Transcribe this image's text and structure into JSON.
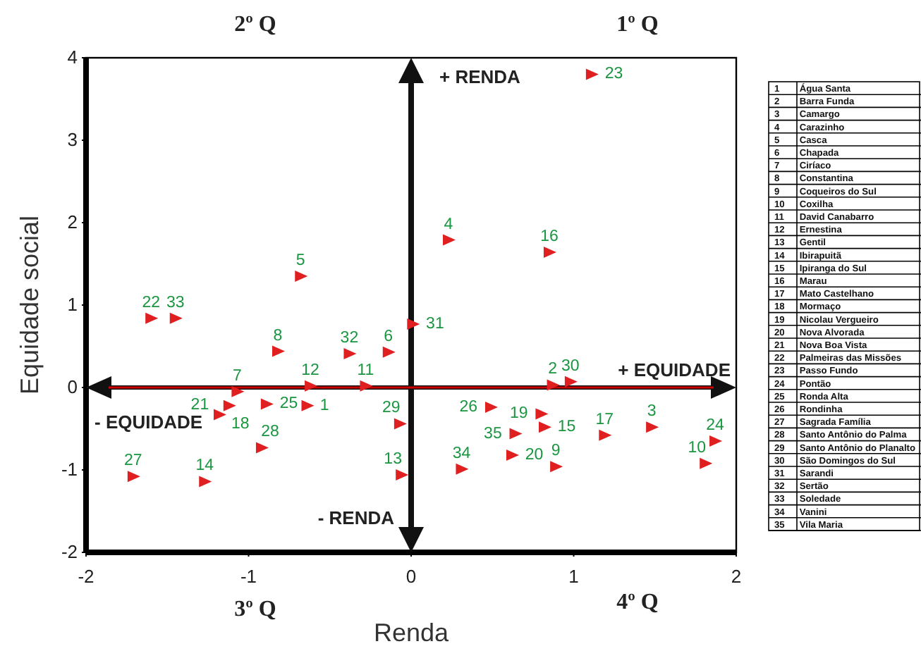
{
  "chart_data": {
    "type": "scatter",
    "xlabel": "Renda",
    "ylabel": "Equidade social",
    "xlim": [
      -2,
      2
    ],
    "ylim": [
      -2,
      4
    ],
    "xticks": [
      -2,
      -1,
      0,
      1,
      2
    ],
    "yticks": [
      -2,
      -1,
      0,
      1,
      2,
      3,
      4
    ],
    "grid": false,
    "marker": "triangle",
    "ref_lines": [
      {
        "axis": "y",
        "value": 0,
        "color": "#cc0000"
      }
    ],
    "annotations": [
      "2º Q",
      "1º Q",
      "3º Q",
      "4º Q",
      "+ RENDA",
      "- RENDA",
      "+ EQUIDADE",
      "- EQUIDADE",
      "1 Água Santa",
      "2 Barra Funda",
      "3 Camargo",
      "4 Carazinho",
      "5 Casca",
      "6 Chapada",
      "7 Ciríaco",
      "8 Constantina",
      "9 Coqueiros do Sul",
      "10 Coxilha",
      "11 David Canabarro",
      "12 Ernestina",
      "13 Gentil",
      "14 Ibirapuitã",
      "15 Ipiranga do Sul",
      "16 Marau",
      "17 Mato Castelhano",
      "18 Mormaço",
      "19 Nicolau Vergueiro",
      "20 Nova Alvorada",
      "21 Nova Boa Vista",
      "22 Palmeiras das Missões",
      "23 Passo Fundo",
      "24 Pontão",
      "25 Ronda Alta",
      "26 Rondinha",
      "27 Sagrada Família",
      "28 Santo Antônio do Palma",
      "29 Santo Antônio do Planalto",
      "30 São Domingos do Sul",
      "31 Sarandi",
      "32 Sertão",
      "33 Soledade",
      "34 Vanini",
      "35 Vila Maria"
    ],
    "series": [
      {
        "name": "1",
        "color": "#e02020",
        "x": [
          -0.64
        ],
        "values": [
          -0.22
        ]
      },
      {
        "name": "2",
        "color": "#e02020",
        "x": [
          0.87
        ],
        "values": [
          0.03
        ]
      },
      {
        "name": "3",
        "color": "#e02020",
        "x": [
          1.48
        ],
        "values": [
          -0.48
        ]
      },
      {
        "name": "4",
        "color": "#e02020",
        "x": [
          0.23
        ],
        "values": [
          1.79
        ]
      },
      {
        "name": "5",
        "color": "#e02020",
        "x": [
          -0.68
        ],
        "values": [
          1.35
        ]
      },
      {
        "name": "6",
        "color": "#e02020",
        "x": [
          -0.14
        ],
        "values": [
          0.43
        ]
      },
      {
        "name": "7",
        "color": "#e02020",
        "x": [
          -1.07
        ],
        "values": [
          -0.05
        ]
      },
      {
        "name": "8",
        "color": "#e02020",
        "x": [
          -0.82
        ],
        "values": [
          0.44
        ]
      },
      {
        "name": "9",
        "color": "#e02020",
        "x": [
          0.89
        ],
        "values": [
          -0.96
        ]
      },
      {
        "name": "10",
        "color": "#e02020",
        "x": [
          1.81
        ],
        "values": [
          -0.92
        ]
      },
      {
        "name": "11",
        "color": "#e02020",
        "x": [
          -0.28
        ],
        "values": [
          0.02
        ]
      },
      {
        "name": "12",
        "color": "#e02020",
        "x": [
          -0.62
        ],
        "values": [
          0.02
        ]
      },
      {
        "name": "13",
        "color": "#e02020",
        "x": [
          -0.06
        ],
        "values": [
          -1.06
        ]
      },
      {
        "name": "14",
        "color": "#e02020",
        "x": [
          -1.27
        ],
        "values": [
          -1.14
        ]
      },
      {
        "name": "15",
        "color": "#e02020",
        "x": [
          0.82
        ],
        "values": [
          -0.48
        ]
      },
      {
        "name": "16",
        "color": "#e02020",
        "x": [
          0.85
        ],
        "values": [
          1.64
        ]
      },
      {
        "name": "17",
        "color": "#e02020",
        "x": [
          1.19
        ],
        "values": [
          -0.58
        ]
      },
      {
        "name": "18",
        "color": "#e02020",
        "x": [
          -1.12
        ],
        "values": [
          -0.22
        ]
      },
      {
        "name": "19",
        "color": "#e02020",
        "x": [
          0.8
        ],
        "values": [
          -0.32
        ]
      },
      {
        "name": "20",
        "color": "#e02020",
        "x": [
          0.62
        ],
        "values": [
          -0.82
        ]
      },
      {
        "name": "21",
        "color": "#e02020",
        "x": [
          -1.18
        ],
        "values": [
          -0.33
        ]
      },
      {
        "name": "22",
        "color": "#e02020",
        "x": [
          -1.6
        ],
        "values": [
          0.84
        ]
      },
      {
        "name": "23",
        "color": "#e02020",
        "x": [
          1.11
        ],
        "values": [
          3.8
        ]
      },
      {
        "name": "24",
        "color": "#e02020",
        "x": [
          1.87
        ],
        "values": [
          -0.65
        ]
      },
      {
        "name": "25",
        "color": "#e02020",
        "x": [
          -0.89
        ],
        "values": [
          -0.2
        ]
      },
      {
        "name": "26",
        "color": "#e02020",
        "x": [
          0.49
        ],
        "values": [
          -0.24
        ]
      },
      {
        "name": "27",
        "color": "#e02020",
        "x": [
          -1.71
        ],
        "values": [
          -1.08
        ]
      },
      {
        "name": "28",
        "color": "#e02020",
        "x": [
          -0.92
        ],
        "values": [
          -0.73
        ]
      },
      {
        "name": "29",
        "color": "#e02020",
        "x": [
          -0.07
        ],
        "values": [
          -0.44
        ]
      },
      {
        "name": "30",
        "color": "#e02020",
        "x": [
          0.98
        ],
        "values": [
          0.07
        ]
      },
      {
        "name": "31",
        "color": "#e02020",
        "x": [
          0.01
        ],
        "values": [
          0.77
        ]
      },
      {
        "name": "32",
        "color": "#e02020",
        "x": [
          -0.38
        ],
        "values": [
          0.41
        ]
      },
      {
        "name": "33",
        "color": "#e02020",
        "x": [
          -1.45
        ],
        "values": [
          0.84
        ]
      },
      {
        "name": "34",
        "color": "#e02020",
        "x": [
          0.31
        ],
        "values": [
          -0.99
        ]
      },
      {
        "name": "35",
        "color": "#e02020",
        "x": [
          0.64
        ],
        "values": [
          -0.56
        ]
      }
    ]
  }
}
